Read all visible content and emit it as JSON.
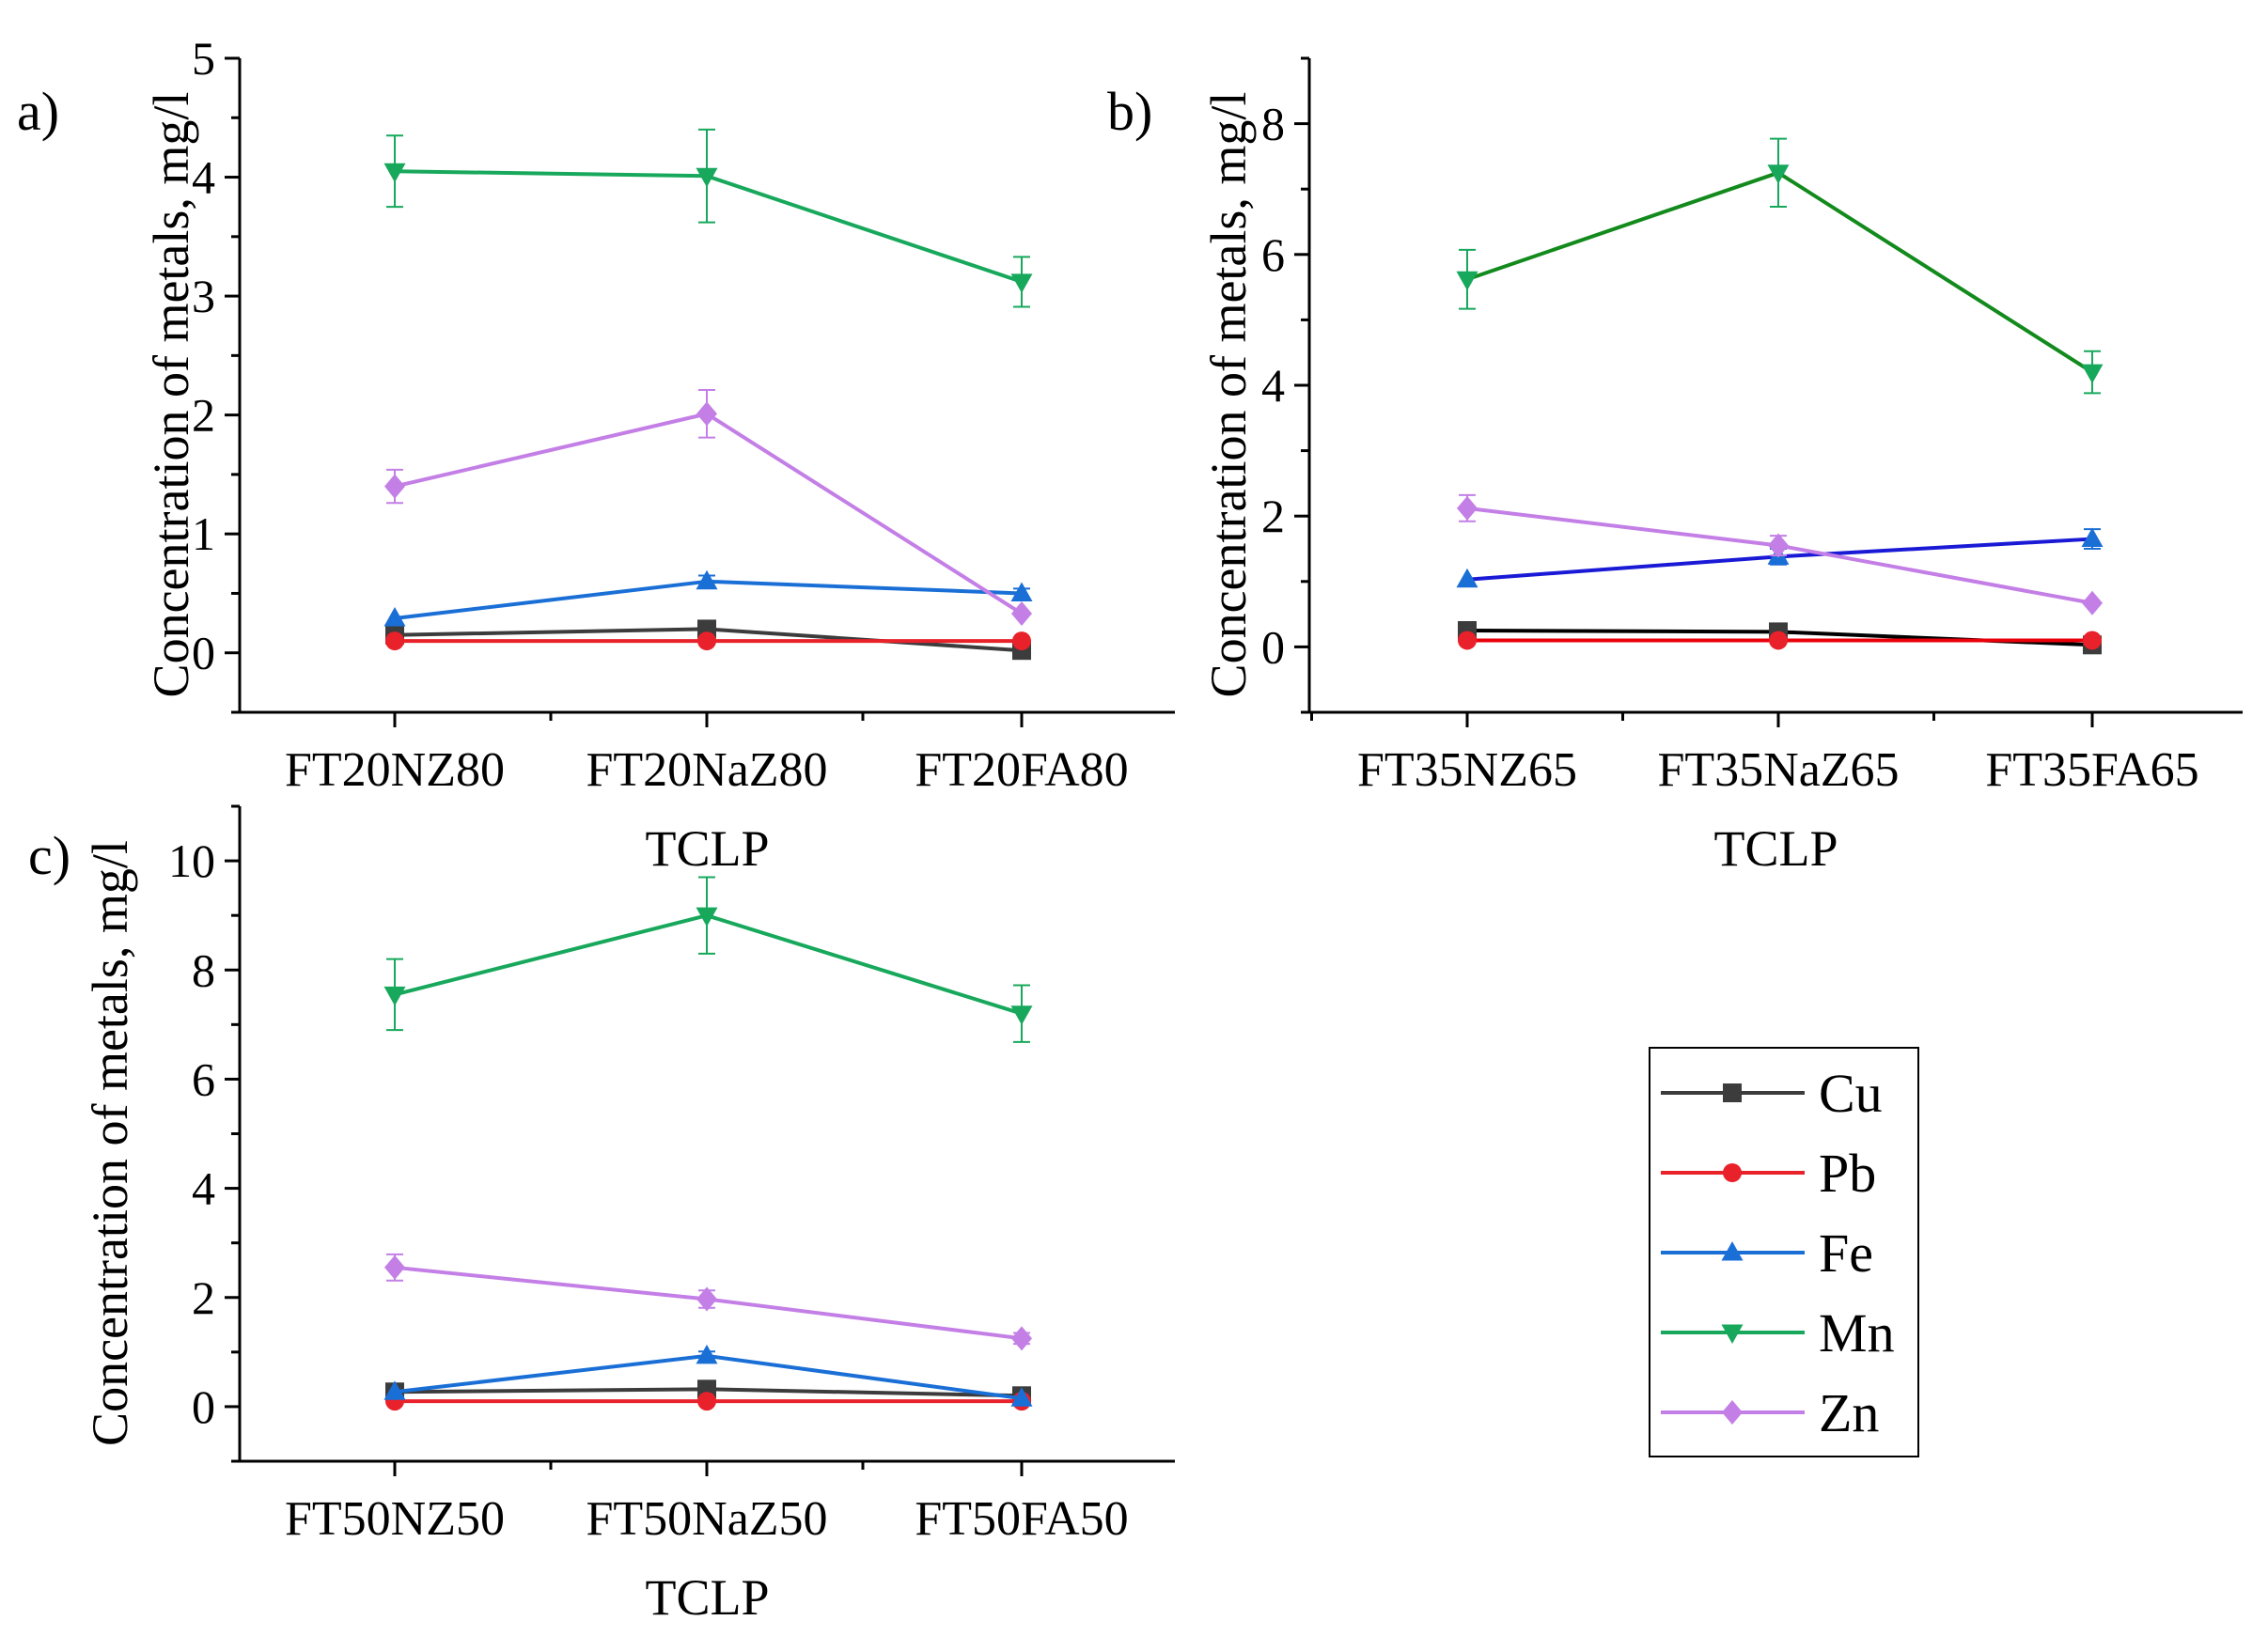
{
  "chart_data": [
    {
      "panel_label": "a)",
      "type": "line",
      "xlabel": "TCLP",
      "ylabel": "Concentration of metals, mg/l",
      "categories": [
        "FT20NZ80",
        "FT20NaZ80",
        "FT20FA80"
      ],
      "ylim": [
        -0.5,
        5
      ],
      "yticks": [
        0,
        1,
        2,
        3,
        4,
        5
      ],
      "series": [
        {
          "name": "Cu",
          "values": [
            0.15,
            0.2,
            0.02
          ],
          "errors": [
            0,
            0,
            0
          ]
        },
        {
          "name": "Pb",
          "values": [
            0.1,
            0.1,
            0.1
          ],
          "errors": [
            0,
            0,
            0
          ]
        },
        {
          "name": "Fe",
          "values": [
            0.29,
            0.6,
            0.5
          ],
          "errors": [
            0,
            0.05,
            0.04
          ]
        },
        {
          "name": "Mn",
          "values": [
            4.05,
            4.01,
            3.12
          ],
          "errors": [
            0.3,
            0.39,
            0.21
          ]
        },
        {
          "name": "Zn",
          "values": [
            1.4,
            2.01,
            0.33
          ],
          "errors": [
            0.14,
            0.2,
            0
          ]
        }
      ]
    },
    {
      "panel_label": "b)",
      "type": "line",
      "xlabel": "TCLP",
      "ylabel": "Concentration of metals, mg/l",
      "categories": [
        "FT35NZ65",
        "FT35NaZ65",
        "FT35FA65"
      ],
      "ylim": [
        -1,
        9
      ],
      "yticks": [
        0,
        2,
        4,
        6,
        8
      ],
      "series": [
        {
          "name": "Cu",
          "values": [
            0.25,
            0.23,
            0.03
          ],
          "errors": [
            0,
            0,
            0
          ]
        },
        {
          "name": "Pb",
          "values": [
            0.1,
            0.1,
            0.1
          ],
          "errors": [
            0,
            0,
            0
          ]
        },
        {
          "name": "Fe",
          "values": [
            1.03,
            1.38,
            1.65
          ],
          "errors": [
            0,
            0.12,
            0.15
          ]
        },
        {
          "name": "Mn",
          "values": [
            5.62,
            7.25,
            4.2
          ],
          "errors": [
            0.45,
            0.52,
            0.32
          ]
        },
        {
          "name": "Zn",
          "values": [
            2.12,
            1.55,
            0.67
          ],
          "errors": [
            0.2,
            0.15,
            0
          ]
        }
      ]
    },
    {
      "panel_label": "c)",
      "type": "line",
      "xlabel": "TCLP",
      "ylabel": "Concentration of metals, mg/l",
      "categories": [
        "FT50NZ50",
        "FT50NaZ50",
        "FT50FA50"
      ],
      "ylim": [
        -1,
        11
      ],
      "yticks": [
        0,
        2,
        4,
        6,
        8,
        10
      ],
      "series": [
        {
          "name": "Cu",
          "values": [
            0.27,
            0.32,
            0.2
          ],
          "errors": [
            0,
            0,
            0
          ]
        },
        {
          "name": "Pb",
          "values": [
            0.1,
            0.1,
            0.1
          ],
          "errors": [
            0,
            0,
            0
          ]
        },
        {
          "name": "Fe",
          "values": [
            0.27,
            0.93,
            0.15
          ],
          "errors": [
            0,
            0.08,
            0
          ]
        },
        {
          "name": "Mn",
          "values": [
            7.55,
            9.0,
            7.2
          ],
          "errors": [
            0.65,
            0.7,
            0.52
          ]
        },
        {
          "name": "Zn",
          "values": [
            2.55,
            1.97,
            1.25
          ],
          "errors": [
            0.24,
            0.16,
            0.1
          ]
        }
      ]
    }
  ],
  "legend": {
    "placement": "bottom-right",
    "entries": [
      {
        "name": "Cu",
        "marker": "square"
      },
      {
        "name": "Pb",
        "marker": "circle"
      },
      {
        "name": "Fe",
        "marker": "triangle-up"
      },
      {
        "name": "Mn",
        "marker": "triangle-down"
      },
      {
        "name": "Zn",
        "marker": "diamond"
      }
    ]
  },
  "colors": {
    "Cu": "#3c3c3c",
    "Pb": "#e8212b",
    "Fe": "#1a6fd6",
    "Mn": "#17a85c",
    "Zn": "#c37fe6",
    "b_Cu": "#000000",
    "b_Pb": "#e8000b",
    "b_Fe": "#1a1ad6",
    "b_Mn": "#128a1c"
  }
}
